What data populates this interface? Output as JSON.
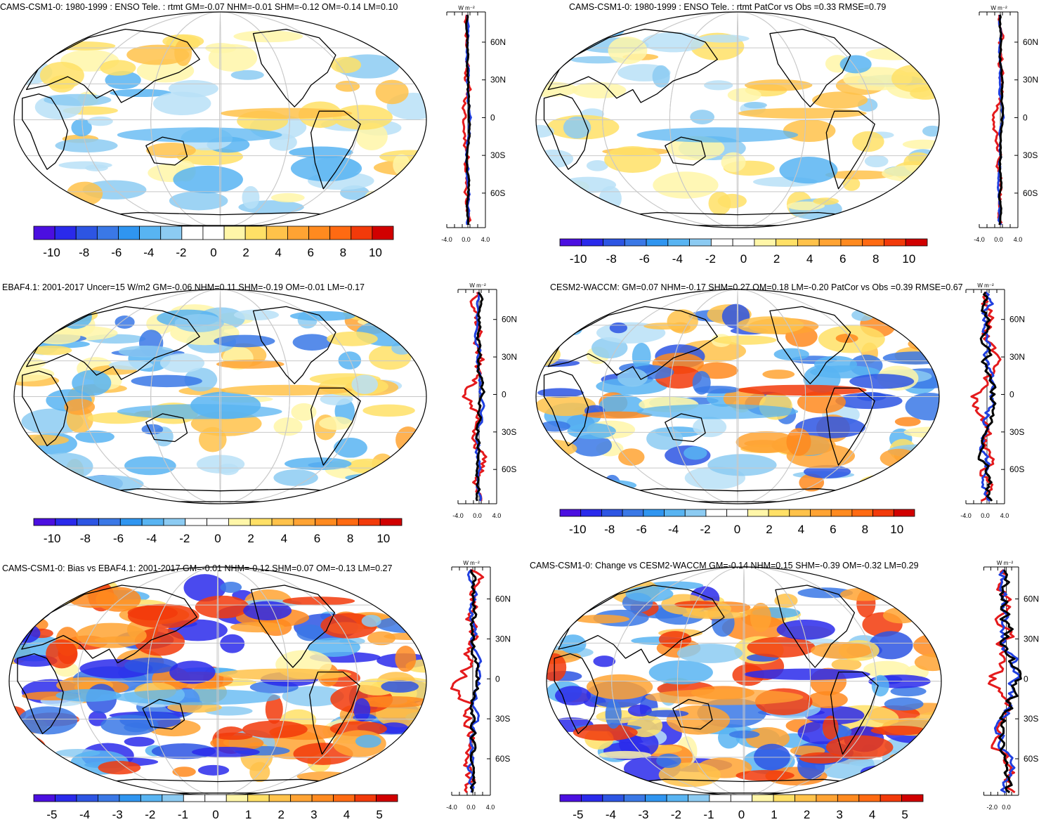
{
  "figure": {
    "colors": {
      "ocean_bg": "#ffffff",
      "coast": "#000000",
      "grid": "#c8c8c8",
      "obs_line": "#e41a1c",
      "model_line": "#1f3fe0",
      "diff_line": "#000000"
    },
    "scale_full": [
      "#4b0fe0",
      "#2a2aeb",
      "#2d55e3",
      "#3a78e6",
      "#2f95f0",
      "#58b4f2",
      "#8ccbf2",
      "#ffffff",
      "#ffffff",
      "#fff6a8",
      "#ffe066",
      "#ffc24a",
      "#ffa333",
      "#ff8a1f",
      "#ff6a12",
      "#f23a0a",
      "#d10000"
    ],
    "panels": [
      {
        "id": "p1",
        "title": "CAMS-CSM1-0: 1980-1999 : ENSO Tele. : rtmt GM=-0.07 NHM=-0.01 SHM=-0.12 OM=-0.14 LM=0.10",
        "unit_label": "W m⁻²",
        "lat_ticks": [
          "60N",
          "30N",
          "0",
          "30S",
          "60S"
        ],
        "profile_ticks": [
          "-4.0",
          "0.0",
          "4.0"
        ],
        "colorbar_labels": [
          "-10",
          "-8",
          "-6",
          "-4",
          "-2",
          "0",
          "2",
          "4",
          "6",
          "8",
          "10"
        ]
      },
      {
        "id": "p2",
        "title": "CAMS-CSM1-0: 1980-1999 : ENSO Tele. : rtmt PatCor vs Obs =0.33 RMSE=0.79",
        "unit_label": "W m⁻²",
        "lat_ticks": [
          "60N",
          "30N",
          "0",
          "30S",
          "60S"
        ],
        "profile_ticks": [
          "-4.0",
          "0.0",
          "4.0"
        ],
        "colorbar_labels": [
          "-10",
          "-8",
          "-6",
          "-4",
          "-2",
          "0",
          "2",
          "4",
          "6",
          "8",
          "10"
        ]
      },
      {
        "id": "p3",
        "title": "EBAF4.1: 2001-2017 Uncer=15 W/m2 GM=-0.06 NHM=0.11 SHM=-0.19 OM=-0.01 LM=-0.17",
        "unit_label": "W m⁻²",
        "lat_ticks": [
          "60N",
          "30N",
          "0",
          "30S",
          "60S"
        ],
        "profile_ticks": [
          "-4.0",
          "0.0",
          "4.0"
        ],
        "colorbar_labels": [
          "-10",
          "-8",
          "-6",
          "-4",
          "-2",
          "0",
          "2",
          "4",
          "6",
          "8",
          "10"
        ]
      },
      {
        "id": "p4",
        "title": "CESM2-WACCM: GM=0.07 NHM=-0.17 SHM=0.27 OM=0.18 LM=-0.20 PatCor vs Obs =0.39 RMSE=0.67",
        "unit_label": "W m⁻²",
        "lat_ticks": [
          "60N",
          "30N",
          "0",
          "30S",
          "60S"
        ],
        "profile_ticks": [
          "-4.0",
          "0.0",
          "4.0"
        ],
        "colorbar_labels": [
          "-10",
          "-8",
          "-6",
          "-4",
          "-2",
          "0",
          "2",
          "4",
          "6",
          "8",
          "10"
        ]
      },
      {
        "id": "p5",
        "title": "CAMS-CSM1-0: Bias vs EBAF4.1: 2001-2017 GM=-0.01 NHM=-0.12 SHM=0.07 OM=-0.13 LM=0.27",
        "unit_label": "W m⁻²",
        "lat_ticks": [
          "60N",
          "30N",
          "0",
          "30S",
          "60S"
        ],
        "profile_ticks": [
          "-4.0",
          "0.0",
          "4.0"
        ],
        "colorbar_labels": [
          "-5",
          "-4",
          "-3",
          "-2",
          "-1",
          "0",
          "1",
          "2",
          "3",
          "4",
          "5"
        ]
      },
      {
        "id": "p6",
        "title": "CAMS-CSM1-0: Change vs CESM2-WACCM GM=-0.14 NHM=0.15 SHM=-0.39 OM=-0.32 LM=0.29",
        "unit_label": "W m⁻²",
        "lat_ticks": [
          "60N",
          "30N",
          "0",
          "30S",
          "60S"
        ],
        "profile_ticks": [
          "-2.0",
          "0.0"
        ],
        "colorbar_labels": [
          "-5",
          "-4",
          "-3",
          "-2",
          "-1",
          "0",
          "1",
          "2",
          "3",
          "4",
          "5"
        ]
      }
    ]
  }
}
